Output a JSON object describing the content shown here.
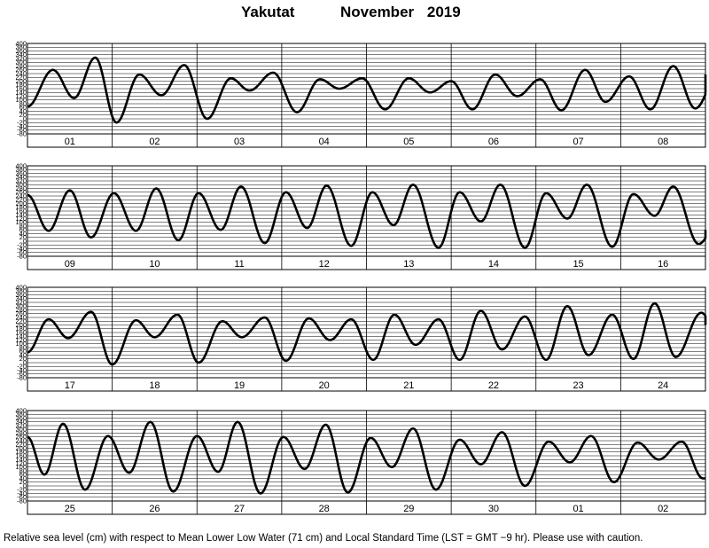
{
  "header": {
    "station": "Yakutat",
    "month": "November",
    "year": "2019"
  },
  "footnote": "Relative sea level (cm) with respect to Mean Lower Low Water (71 cm) and Local Standard Time (LST = GMT −9 hr). Please use with caution.",
  "chart_data": {
    "type": "line",
    "title": "Yakutat November 2019",
    "xlabel": "",
    "ylabel": "",
    "ylim": [
      -80,
      400
    ],
    "y_ticks": [
      400,
      380,
      360,
      340,
      320,
      300,
      280,
      260,
      240,
      220,
      200,
      180,
      160,
      140,
      120,
      100,
      80,
      60,
      40,
      20,
      0,
      -20,
      -40,
      -60,
      -80
    ],
    "grid": true,
    "panels": [
      {
        "day_labels": [
          "01",
          "02",
          "03",
          "04",
          "05",
          "06",
          "07",
          "08"
        ],
        "extrema": [
          {
            "day": 0.5,
            "value": 65
          },
          {
            "day": 0.8,
            "value": 260
          },
          {
            "day": 1.05,
            "value": 110
          },
          {
            "day": 1.3,
            "value": 325
          },
          {
            "day": 1.55,
            "value": -20
          },
          {
            "day": 1.82,
            "value": 235
          },
          {
            "day": 2.08,
            "value": 125
          },
          {
            "day": 2.35,
            "value": 285
          },
          {
            "day": 2.62,
            "value": 0
          },
          {
            "day": 2.9,
            "value": 215
          },
          {
            "day": 3.12,
            "value": 150
          },
          {
            "day": 3.4,
            "value": 245
          },
          {
            "day": 3.68,
            "value": 35
          },
          {
            "day": 3.95,
            "value": 210
          },
          {
            "day": 4.18,
            "value": 160
          },
          {
            "day": 4.45,
            "value": 215
          },
          {
            "day": 4.72,
            "value": 50
          },
          {
            "day": 5.0,
            "value": 215
          },
          {
            "day": 5.25,
            "value": 140
          },
          {
            "day": 5.5,
            "value": 200
          },
          {
            "day": 5.75,
            "value": 50
          },
          {
            "day": 6.02,
            "value": 235
          },
          {
            "day": 6.28,
            "value": 120
          },
          {
            "day": 6.55,
            "value": 210
          },
          {
            "day": 6.8,
            "value": 45
          },
          {
            "day": 7.08,
            "value": 260
          },
          {
            "day": 7.32,
            "value": 90
          },
          {
            "day": 7.6,
            "value": 225
          },
          {
            "day": 7.85,
            "value": 50
          },
          {
            "day": 8.12,
            "value": 280
          },
          {
            "day": 8.38,
            "value": 55
          },
          {
            "day": 8.65,
            "value": 235
          }
        ]
      },
      {
        "day_labels": [
          "09",
          "10",
          "11",
          "12",
          "13",
          "14",
          "15",
          "16"
        ],
        "extrema": [
          {
            "day": 8.5,
            "value": 245
          },
          {
            "day": 8.75,
            "value": 55
          },
          {
            "day": 9.0,
            "value": 270
          },
          {
            "day": 9.25,
            "value": 20
          },
          {
            "day": 9.52,
            "value": 255
          },
          {
            "day": 9.78,
            "value": 55
          },
          {
            "day": 10.02,
            "value": 280
          },
          {
            "day": 10.28,
            "value": 5
          },
          {
            "day": 10.52,
            "value": 255
          },
          {
            "day": 10.78,
            "value": 60
          },
          {
            "day": 11.02,
            "value": 290
          },
          {
            "day": 11.3,
            "value": -10
          },
          {
            "day": 11.55,
            "value": 260
          },
          {
            "day": 11.8,
            "value": 70
          },
          {
            "day": 12.03,
            "value": 295
          },
          {
            "day": 12.32,
            "value": -25
          },
          {
            "day": 12.57,
            "value": 260
          },
          {
            "day": 12.82,
            "value": 85
          },
          {
            "day": 13.05,
            "value": 300
          },
          {
            "day": 13.35,
            "value": -35
          },
          {
            "day": 13.6,
            "value": 260
          },
          {
            "day": 13.85,
            "value": 105
          },
          {
            "day": 14.08,
            "value": 300
          },
          {
            "day": 14.37,
            "value": -35
          },
          {
            "day": 14.62,
            "value": 255
          },
          {
            "day": 14.87,
            "value": 120
          },
          {
            "day": 15.1,
            "value": 300
          },
          {
            "day": 15.4,
            "value": -30
          },
          {
            "day": 15.65,
            "value": 250
          },
          {
            "day": 15.9,
            "value": 135
          },
          {
            "day": 16.12,
            "value": 290
          },
          {
            "day": 16.42,
            "value": -15
          },
          {
            "day": 16.6,
            "value": 60
          }
        ]
      },
      {
        "day_labels": [
          "17",
          "18",
          "19",
          "20",
          "21",
          "22",
          "23",
          "24"
        ],
        "extrema": [
          {
            "day": 16.5,
            "value": 55
          },
          {
            "day": 16.75,
            "value": 230
          },
          {
            "day": 16.98,
            "value": 130
          },
          {
            "day": 17.25,
            "value": 270
          },
          {
            "day": 17.5,
            "value": -10
          },
          {
            "day": 17.78,
            "value": 225
          },
          {
            "day": 18.0,
            "value": 135
          },
          {
            "day": 18.27,
            "value": 255
          },
          {
            "day": 18.52,
            "value": 0
          },
          {
            "day": 18.8,
            "value": 220
          },
          {
            "day": 19.03,
            "value": 135
          },
          {
            "day": 19.3,
            "value": 240
          },
          {
            "day": 19.55,
            "value": 10
          },
          {
            "day": 19.82,
            "value": 235
          },
          {
            "day": 20.07,
            "value": 120
          },
          {
            "day": 20.32,
            "value": 230
          },
          {
            "day": 20.58,
            "value": 15
          },
          {
            "day": 20.83,
            "value": 255
          },
          {
            "day": 21.08,
            "value": 95
          },
          {
            "day": 21.35,
            "value": 230
          },
          {
            "day": 21.6,
            "value": 15
          },
          {
            "day": 21.85,
            "value": 275
          },
          {
            "day": 22.1,
            "value": 70
          },
          {
            "day": 22.37,
            "value": 245
          },
          {
            "day": 22.62,
            "value": 15
          },
          {
            "day": 22.87,
            "value": 300
          },
          {
            "day": 23.12,
            "value": 40
          },
          {
            "day": 23.4,
            "value": 255
          },
          {
            "day": 23.65,
            "value": 20
          },
          {
            "day": 23.9,
            "value": 315
          },
          {
            "day": 24.15,
            "value": 30
          },
          {
            "day": 24.45,
            "value": 265
          },
          {
            "day": 24.6,
            "value": 200
          }
        ]
      },
      {
        "day_labels": [
          "25",
          "26",
          "27",
          "28",
          "29",
          "30",
          "01",
          "02"
        ],
        "extrema": [
          {
            "day": 24.5,
            "value": 260
          },
          {
            "day": 24.7,
            "value": 60
          },
          {
            "day": 24.92,
            "value": 330
          },
          {
            "day": 25.18,
            "value": -20
          },
          {
            "day": 25.45,
            "value": 265
          },
          {
            "day": 25.7,
            "value": 70
          },
          {
            "day": 25.95,
            "value": 340
          },
          {
            "day": 26.22,
            "value": -30
          },
          {
            "day": 26.5,
            "value": 265
          },
          {
            "day": 26.75,
            "value": 75
          },
          {
            "day": 26.98,
            "value": 340
          },
          {
            "day": 27.25,
            "value": -40
          },
          {
            "day": 27.52,
            "value": 260
          },
          {
            "day": 27.77,
            "value": 90
          },
          {
            "day": 28.02,
            "value": 325
          },
          {
            "day": 28.28,
            "value": -35
          },
          {
            "day": 28.55,
            "value": 255
          },
          {
            "day": 28.8,
            "value": 100
          },
          {
            "day": 29.05,
            "value": 305
          },
          {
            "day": 29.32,
            "value": -20
          },
          {
            "day": 29.6,
            "value": 245
          },
          {
            "day": 29.85,
            "value": 115
          },
          {
            "day": 30.1,
            "value": 285
          },
          {
            "day": 30.37,
            "value": 0
          },
          {
            "day": 30.65,
            "value": 235
          },
          {
            "day": 30.9,
            "value": 125
          },
          {
            "day": 31.15,
            "value": 265
          },
          {
            "day": 31.42,
            "value": 20
          },
          {
            "day": 31.7,
            "value": 230
          },
          {
            "day": 31.95,
            "value": 140
          },
          {
            "day": 32.22,
            "value": 235
          },
          {
            "day": 32.47,
            "value": 40
          },
          {
            "day": 32.6,
            "value": 40
          }
        ]
      }
    ]
  }
}
